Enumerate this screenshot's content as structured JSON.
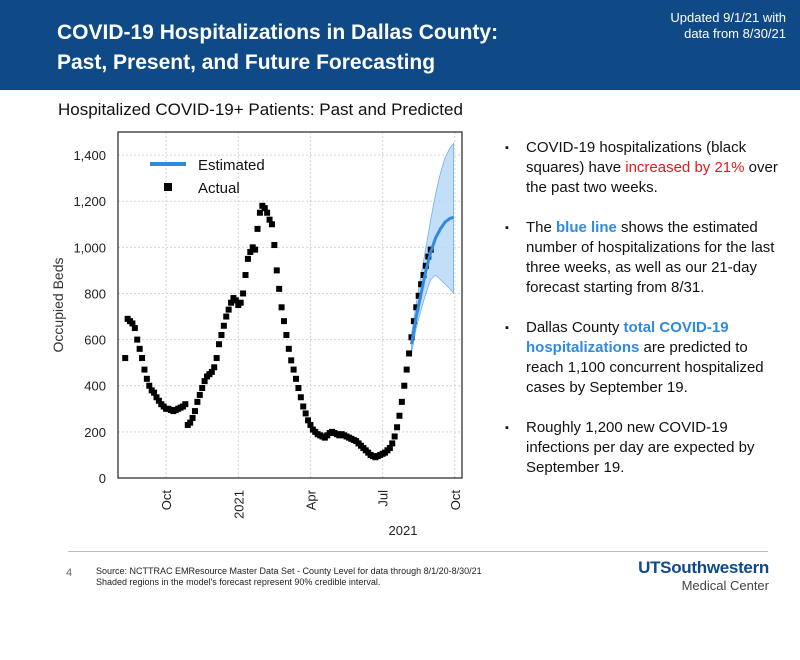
{
  "header": {
    "title_line1": "COVID-19 Hospitalizations in Dallas County:",
    "title_line2": "Past, Present, and Future Forecasting",
    "updated_line1": "Updated 9/1/21 with",
    "updated_line2": "data from 8/30/21",
    "background_color": "#0f4a86"
  },
  "chart_title": "Hospitalized COVID-19+ Patients: Past and Predicted",
  "chart_data": {
    "type": "scatter",
    "title": "Hospitalized COVID-19+ Patients: Past and Predicted",
    "ylabel": "Occupied Beds",
    "xlabel": "2021",
    "ylim": [
      0,
      1500
    ],
    "xlim": [
      0,
      14.3
    ],
    "yticks": [
      0,
      200,
      400,
      600,
      800,
      1000,
      1200,
      1400
    ],
    "ytick_labels": [
      "0",
      "200",
      "400",
      "600",
      "800",
      "1,000",
      "1,200",
      "1,400"
    ],
    "xticks": [
      {
        "label": "Oct",
        "x": 2
      },
      {
        "label": "2021",
        "x": 5
      },
      {
        "label": "Apr",
        "x": 8
      },
      {
        "label": "Jul",
        "x": 11
      },
      {
        "label": "Oct",
        "x": 14
      }
    ],
    "legend": [
      {
        "name": "Estimated",
        "style": "line",
        "color": "#2f8ae0"
      },
      {
        "name": "Actual",
        "style": "square",
        "color": "#000000"
      }
    ],
    "actual_note": "x in months since Aug 1 2020; y in occupied beds",
    "actual": [
      [
        0.3,
        520
      ],
      [
        0.4,
        690
      ],
      [
        0.5,
        680
      ],
      [
        0.6,
        670
      ],
      [
        0.7,
        650
      ],
      [
        0.8,
        600
      ],
      [
        0.9,
        560
      ],
      [
        1.0,
        520
      ],
      [
        1.1,
        470
      ],
      [
        1.2,
        430
      ],
      [
        1.3,
        400
      ],
      [
        1.4,
        380
      ],
      [
        1.5,
        370
      ],
      [
        1.6,
        350
      ],
      [
        1.7,
        335
      ],
      [
        1.8,
        320
      ],
      [
        1.9,
        310
      ],
      [
        2.0,
        300
      ],
      [
        2.1,
        300
      ],
      [
        2.2,
        295
      ],
      [
        2.3,
        290
      ],
      [
        2.4,
        295
      ],
      [
        2.5,
        300
      ],
      [
        2.6,
        305
      ],
      [
        2.7,
        310
      ],
      [
        2.8,
        320
      ],
      [
        2.9,
        230
      ],
      [
        3.0,
        240
      ],
      [
        3.1,
        260
      ],
      [
        3.2,
        290
      ],
      [
        3.3,
        330
      ],
      [
        3.4,
        360
      ],
      [
        3.5,
        390
      ],
      [
        3.6,
        420
      ],
      [
        3.7,
        440
      ],
      [
        3.8,
        450
      ],
      [
        3.9,
        460
      ],
      [
        4.0,
        480
      ],
      [
        4.1,
        520
      ],
      [
        4.2,
        580
      ],
      [
        4.3,
        620
      ],
      [
        4.4,
        660
      ],
      [
        4.5,
        700
      ],
      [
        4.6,
        730
      ],
      [
        4.7,
        760
      ],
      [
        4.8,
        780
      ],
      [
        4.9,
        770
      ],
      [
        5.0,
        750
      ],
      [
        5.1,
        760
      ],
      [
        5.2,
        800
      ],
      [
        5.3,
        880
      ],
      [
        5.4,
        950
      ],
      [
        5.5,
        980
      ],
      [
        5.6,
        1000
      ],
      [
        5.7,
        990
      ],
      [
        5.8,
        1080
      ],
      [
        5.9,
        1150
      ],
      [
        6.0,
        1180
      ],
      [
        6.1,
        1170
      ],
      [
        6.2,
        1150
      ],
      [
        6.3,
        1120
      ],
      [
        6.4,
        1100
      ],
      [
        6.5,
        1010
      ],
      [
        6.6,
        900
      ],
      [
        6.7,
        820
      ],
      [
        6.8,
        740
      ],
      [
        6.9,
        680
      ],
      [
        7.0,
        620
      ],
      [
        7.1,
        560
      ],
      [
        7.2,
        510
      ],
      [
        7.3,
        470
      ],
      [
        7.4,
        430
      ],
      [
        7.5,
        390
      ],
      [
        7.6,
        350
      ],
      [
        7.7,
        310
      ],
      [
        7.8,
        280
      ],
      [
        7.9,
        250
      ],
      [
        8.0,
        230
      ],
      [
        8.1,
        210
      ],
      [
        8.2,
        200
      ],
      [
        8.3,
        190
      ],
      [
        8.4,
        185
      ],
      [
        8.5,
        180
      ],
      [
        8.6,
        175
      ],
      [
        8.7,
        185
      ],
      [
        8.8,
        195
      ],
      [
        8.9,
        200
      ],
      [
        9.0,
        195
      ],
      [
        9.1,
        190
      ],
      [
        9.2,
        185
      ],
      [
        9.3,
        190
      ],
      [
        9.4,
        185
      ],
      [
        9.5,
        180
      ],
      [
        9.6,
        175
      ],
      [
        9.7,
        170
      ],
      [
        9.8,
        165
      ],
      [
        9.9,
        160
      ],
      [
        10.0,
        150
      ],
      [
        10.1,
        140
      ],
      [
        10.2,
        130
      ],
      [
        10.3,
        120
      ],
      [
        10.4,
        110
      ],
      [
        10.5,
        100
      ],
      [
        10.6,
        95
      ],
      [
        10.7,
        90
      ],
      [
        10.8,
        95
      ],
      [
        10.9,
        100
      ],
      [
        11.0,
        105
      ],
      [
        11.1,
        110
      ],
      [
        11.2,
        120
      ],
      [
        11.3,
        130
      ],
      [
        11.4,
        150
      ],
      [
        11.5,
        180
      ],
      [
        11.6,
        220
      ],
      [
        11.7,
        270
      ],
      [
        11.8,
        330
      ],
      [
        11.9,
        400
      ],
      [
        12.0,
        470
      ],
      [
        12.1,
        540
      ],
      [
        12.2,
        610
      ],
      [
        12.3,
        680
      ],
      [
        12.4,
        740
      ],
      [
        12.5,
        790
      ],
      [
        12.6,
        840
      ],
      [
        12.7,
        880
      ],
      [
        12.8,
        920
      ],
      [
        12.9,
        960
      ],
      [
        13.0,
        990
      ]
    ],
    "estimated_note": "estimate with 90% credible interval (lower, upper)",
    "estimated": [
      [
        12.2,
        580,
        540,
        620
      ],
      [
        12.4,
        700,
        650,
        760
      ],
      [
        12.6,
        800,
        730,
        880
      ],
      [
        12.8,
        900,
        800,
        1000
      ],
      [
        13.0,
        980,
        860,
        1120
      ],
      [
        13.2,
        1040,
        880,
        1230
      ],
      [
        13.4,
        1080,
        860,
        1320
      ],
      [
        13.6,
        1110,
        840,
        1390
      ],
      [
        13.8,
        1125,
        820,
        1430
      ],
      [
        13.95,
        1130,
        800,
        1450
      ]
    ],
    "band_color": "#b9d8f7",
    "line_color": "#2f8ae0"
  },
  "bullets": [
    {
      "pre": "COVID-19 hospitalizations (black squares) have ",
      "hl": "increased by 21%",
      "post": " over the past two weeks."
    },
    {
      "pre": "The ",
      "hl": "blue line",
      "post": " shows the estimated number of hospitalizations for the last three weeks, as well as our 21-day forecast starting from 8/31."
    },
    {
      "pre": "Dallas County ",
      "hl": "total COVID-19 hospitalizations",
      "post": " are predicted to reach 1,100 concurrent hospitalized cases by September 19."
    },
    {
      "pre": "",
      "hl": "Roughly 1,200 new COVID-19 infections per day",
      "post": " are expected by September 19."
    }
  ],
  "bullet_symbol": "▪",
  "footer": {
    "page_number": "4",
    "source_line1": "Source: NCTTRAC EMResource Master Data Set - County Level for data through 8/1/20-8/30/21",
    "source_line2": "Shaded regions in the model's forecast represent 90% credible interval.",
    "logo_main": "UTSouthwestern",
    "logo_sub": "Medical Center"
  }
}
